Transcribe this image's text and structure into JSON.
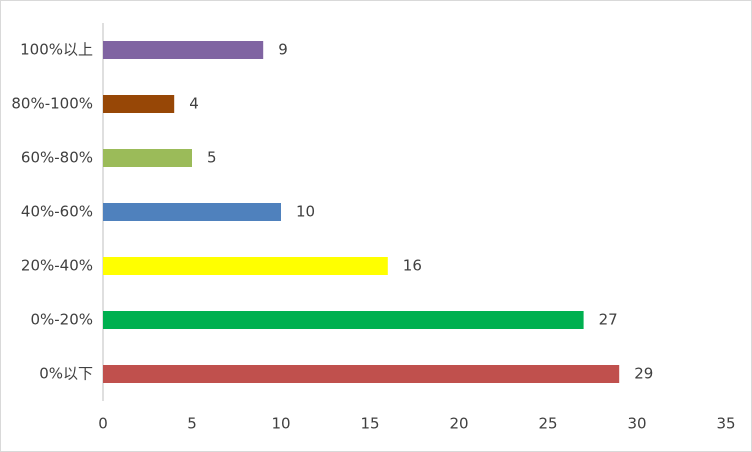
{
  "chart_data": {
    "type": "bar",
    "orientation": "horizontal",
    "categories": [
      "100%以上",
      "80%-100%",
      "60%-80%",
      "40%-60%",
      "20%-40%",
      "0%-20%",
      "0%以下"
    ],
    "values": [
      9,
      4,
      5,
      10,
      16,
      27,
      29
    ],
    "colors": [
      "#8064a2",
      "#974706",
      "#9bbb59",
      "#4f81bd",
      "#ffff00",
      "#00b050",
      "#c0504d"
    ],
    "xlim": [
      0,
      35
    ],
    "xticks": [
      0,
      5,
      10,
      15,
      20,
      25,
      30,
      35
    ],
    "grid": false
  }
}
